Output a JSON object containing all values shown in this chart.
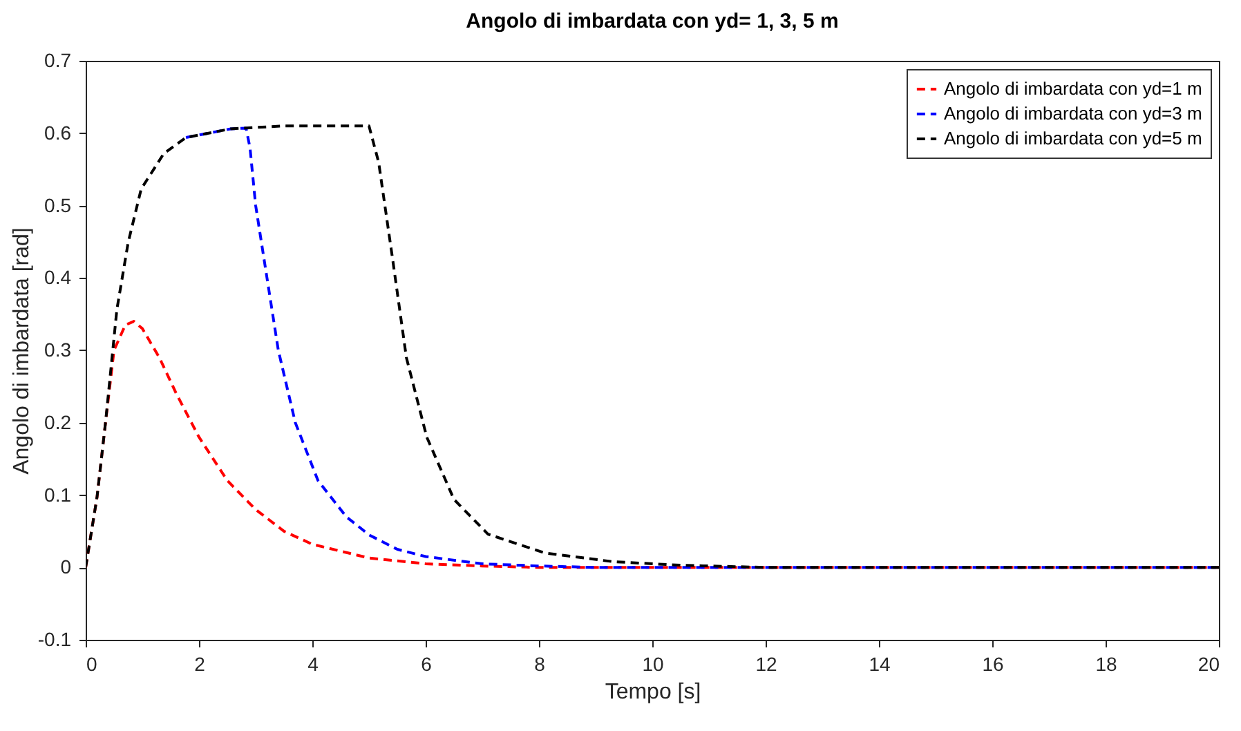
{
  "chart_data": {
    "type": "line",
    "title": "Angolo di imbardata con yd= 1, 3, 5 m",
    "xlabel": "Tempo [s]",
    "ylabel": "Angolo di imbardata [rad]",
    "xlim": [
      0,
      20
    ],
    "xticks": [
      0,
      2,
      4,
      6,
      8,
      10,
      12,
      14,
      16,
      18,
      20
    ],
    "ylim": [
      -0.1,
      0.7
    ],
    "yticks": [
      -0.1,
      0,
      0.1,
      0.2,
      0.3,
      0.4,
      0.5,
      0.6,
      0.7
    ],
    "grid": false,
    "legend": "top right",
    "line_style": "dashed",
    "marker": "none",
    "series": [
      {
        "name": "Angolo di imbardata con yd=1 m",
        "color": "#ff0000",
        "x": [
          0,
          0.2,
          0.35,
          0.5,
          0.7,
          0.85,
          1.0,
          1.3,
          1.6,
          2,
          2.5,
          3,
          3.5,
          4,
          5,
          6,
          7,
          8,
          20
        ],
        "values": [
          0,
          0.097,
          0.2,
          0.3,
          0.335,
          0.34,
          0.33,
          0.29,
          0.24,
          0.18,
          0.12,
          0.08,
          0.05,
          0.032,
          0.013,
          0.005,
          0.002,
          0,
          0
        ]
      },
      {
        "name": "Angolo di imbardata con yd=3 m",
        "color": "#0000ff",
        "x": [
          1.77,
          2.56,
          2.83,
          2.9,
          3.0,
          3.2,
          3.4,
          3.7,
          4.1,
          4.6,
          5,
          5.5,
          6,
          7,
          8,
          9,
          20
        ],
        "values": [
          0.594,
          0.606,
          0.607,
          0.58,
          0.5,
          0.4,
          0.3,
          0.2,
          0.12,
          0.07,
          0.045,
          0.025,
          0.015,
          0.005,
          0.002,
          0,
          0
        ]
      },
      {
        "name": "Angolo di imbardata con yd=5 m",
        "color": "#000000",
        "x": [
          0,
          0.2,
          0.35,
          0.55,
          0.75,
          0.98,
          1.38,
          1.77,
          2.56,
          3.5,
          4.5,
          5.0,
          5.17,
          5.41,
          5.66,
          6.02,
          6.5,
          7.1,
          8.1,
          9.3,
          10.5,
          12,
          20
        ],
        "values": [
          0,
          0.097,
          0.2,
          0.356,
          0.449,
          0.523,
          0.572,
          0.594,
          0.606,
          0.61,
          0.61,
          0.61,
          0.56,
          0.43,
          0.29,
          0.18,
          0.094,
          0.046,
          0.02,
          0.008,
          0.003,
          0,
          0
        ]
      }
    ]
  }
}
